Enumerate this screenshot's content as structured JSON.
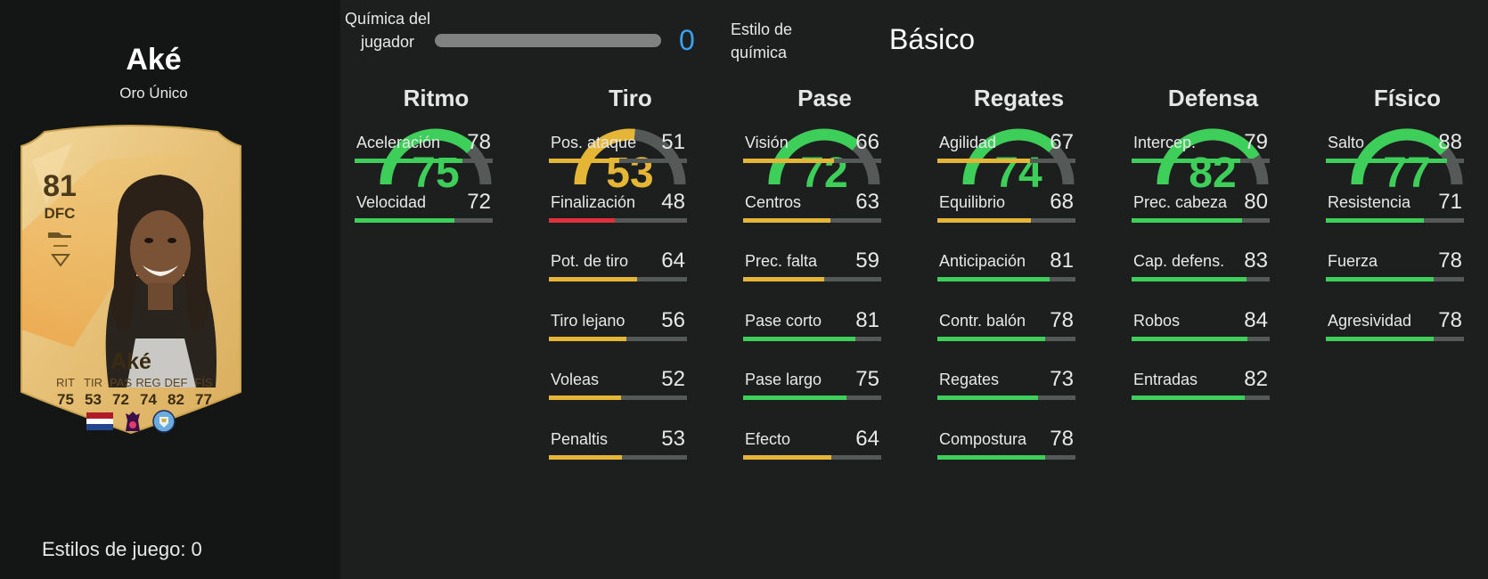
{
  "player": {
    "name": "Aké",
    "card_type": "Oro Único",
    "playstyles_text": "Estilos de juego: 0"
  },
  "card": {
    "rating": "81",
    "position": "DFC",
    "name": "Aké",
    "stats": [
      {
        "label": "RIT",
        "value": "75"
      },
      {
        "label": "TIR",
        "value": "53"
      },
      {
        "label": "PAS",
        "value": "72"
      },
      {
        "label": "REG",
        "value": "74"
      },
      {
        "label": "DEF",
        "value": "82"
      },
      {
        "label": "FÍS",
        "value": "77"
      }
    ],
    "icons": [
      "netherlands-flag-icon",
      "premier-league-icon",
      "manchester-city-badge-icon"
    ]
  },
  "chemistry": {
    "label": "Química del jugador",
    "value": "0",
    "max": 3,
    "style_label": "Estilo de química",
    "style_value": "Básico"
  },
  "colors": {
    "green": "#3ecf5a",
    "yellow": "#e5b536",
    "red": "#e0303c",
    "track": "#555958",
    "chem_blue": "#3aa0f0"
  },
  "categories": [
    {
      "title": "Ritmo",
      "value": 75,
      "attrs": [
        {
          "label": "Aceleración",
          "value": 78
        },
        {
          "label": "Velocidad",
          "value": 72
        }
      ]
    },
    {
      "title": "Tiro",
      "value": 53,
      "attrs": [
        {
          "label": "Pos. ataque",
          "value": 51
        },
        {
          "label": "Finalización",
          "value": 48
        },
        {
          "label": "Pot. de tiro",
          "value": 64
        },
        {
          "label": "Tiro lejano",
          "value": 56
        },
        {
          "label": "Voleas",
          "value": 52
        },
        {
          "label": "Penaltis",
          "value": 53
        }
      ]
    },
    {
      "title": "Pase",
      "value": 72,
      "attrs": [
        {
          "label": "Visión",
          "value": 66
        },
        {
          "label": "Centros",
          "value": 63
        },
        {
          "label": "Prec. falta",
          "value": 59
        },
        {
          "label": "Pase corto",
          "value": 81
        },
        {
          "label": "Pase largo",
          "value": 75
        },
        {
          "label": "Efecto",
          "value": 64
        }
      ]
    },
    {
      "title": "Regates",
      "value": 74,
      "attrs": [
        {
          "label": "Agilidad",
          "value": 67
        },
        {
          "label": "Equilibrio",
          "value": 68
        },
        {
          "label": "Anticipación",
          "value": 81
        },
        {
          "label": "Contr. balón",
          "value": 78
        },
        {
          "label": "Regates",
          "value": 73
        },
        {
          "label": "Compostura",
          "value": 78
        }
      ]
    },
    {
      "title": "Defensa",
      "value": 82,
      "attrs": [
        {
          "label": "Intercep.",
          "value": 79
        },
        {
          "label": "Prec. cabeza",
          "value": 80
        },
        {
          "label": "Cap. defens.",
          "value": 83
        },
        {
          "label": "Robos",
          "value": 84
        },
        {
          "label": "Entradas",
          "value": 82
        }
      ]
    },
    {
      "title": "Físico",
      "value": 77,
      "attrs": [
        {
          "label": "Salto",
          "value": 88
        },
        {
          "label": "Resistencia",
          "value": 71
        },
        {
          "label": "Fuerza",
          "value": 78
        },
        {
          "label": "Agresividad",
          "value": 78
        }
      ]
    }
  ]
}
